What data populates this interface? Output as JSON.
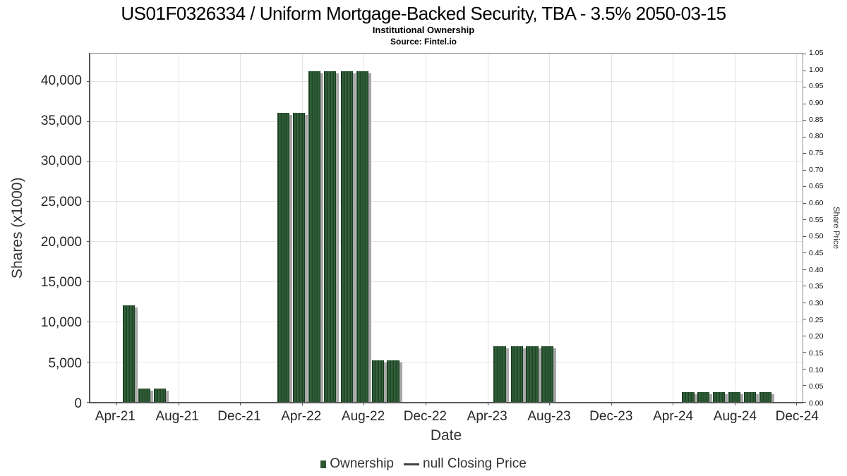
{
  "header": {
    "title": "US01F0326334 / Uniform Mortgage-Backed Security, TBA - 3.5% 2050-03-15",
    "subtitle": "Institutional Ownership",
    "source": "Source: Fintel.io"
  },
  "chart_data": {
    "type": "bar",
    "title": "US01F0326334 / Uniform Mortgage-Backed Security, TBA - 3.5% 2050-03-15",
    "subtitle": "Institutional Ownership",
    "source": "Source: Fintel.io",
    "xlabel": "Date",
    "grid": "both",
    "legend_position": "bottom-center",
    "x_axis": {
      "unit": "months since Apr-2021",
      "xlim": [
        -1.7,
        44.4
      ],
      "ticks": [
        {
          "label": "Apr-21",
          "month": 0
        },
        {
          "label": "Aug-21",
          "month": 4
        },
        {
          "label": "Dec-21",
          "month": 8
        },
        {
          "label": "Apr-22",
          "month": 12
        },
        {
          "label": "Aug-22",
          "month": 16
        },
        {
          "label": "Dec-22",
          "month": 20
        },
        {
          "label": "Apr-23",
          "month": 24
        },
        {
          "label": "Aug-23",
          "month": 28
        },
        {
          "label": "Dec-23",
          "month": 32
        },
        {
          "label": "Apr-24",
          "month": 36
        },
        {
          "label": "Aug-24",
          "month": 40
        },
        {
          "label": "Dec-24",
          "month": 44
        }
      ]
    },
    "y_axis_left": {
      "label": "Shares (x1000)",
      "ylim": [
        0,
        43400
      ],
      "ticks": [
        {
          "label": "0",
          "value": 0
        },
        {
          "label": "5,000",
          "value": 5000
        },
        {
          "label": "10,000",
          "value": 10000
        },
        {
          "label": "15,000",
          "value": 15000
        },
        {
          "label": "20,000",
          "value": 20000
        },
        {
          "label": "25,000",
          "value": 25000
        },
        {
          "label": "30,000",
          "value": 30000
        },
        {
          "label": "35,000",
          "value": 35000
        },
        {
          "label": "40,000",
          "value": 40000
        }
      ]
    },
    "y_axis_right": {
      "label": "Share Price",
      "ylim": [
        0,
        1.05
      ],
      "ticks": [
        {
          "label": "0.00",
          "value": 0.0
        },
        {
          "label": "0.05",
          "value": 0.05
        },
        {
          "label": "0.10",
          "value": 0.1
        },
        {
          "label": "0.15",
          "value": 0.15
        },
        {
          "label": "0.20",
          "value": 0.2
        },
        {
          "label": "0.25",
          "value": 0.25
        },
        {
          "label": "0.30",
          "value": 0.3
        },
        {
          "label": "0.35",
          "value": 0.35
        },
        {
          "label": "0.40",
          "value": 0.4
        },
        {
          "label": "0.45",
          "value": 0.45
        },
        {
          "label": "0.50",
          "value": 0.5
        },
        {
          "label": "0.55",
          "value": 0.55
        },
        {
          "label": "0.60",
          "value": 0.6
        },
        {
          "label": "0.65",
          "value": 0.65
        },
        {
          "label": "0.70",
          "value": 0.7
        },
        {
          "label": "0.75",
          "value": 0.75
        },
        {
          "label": "0.80",
          "value": 0.8
        },
        {
          "label": "0.85",
          "value": 0.85
        },
        {
          "label": "0.90",
          "value": 0.9
        },
        {
          "label": "0.95",
          "value": 0.95
        },
        {
          "label": "1.00",
          "value": 1.0
        },
        {
          "label": "1.05",
          "value": 1.05
        }
      ]
    },
    "bar_width_months": 0.78,
    "series": [
      {
        "name": "Ownership",
        "type": "bar",
        "color": "#2c5732",
        "points": [
          {
            "date": "May-21",
            "month": 0.8,
            "shares_x1000": 12000
          },
          {
            "date": "Jun-21",
            "month": 1.8,
            "shares_x1000": 1650
          },
          {
            "date": "Jul-21",
            "month": 2.8,
            "shares_x1000": 1650
          },
          {
            "date": "Feb-22",
            "month": 10.8,
            "shares_x1000": 36000
          },
          {
            "date": "Mar-22",
            "month": 11.8,
            "shares_x1000": 36000
          },
          {
            "date": "Apr-22",
            "month": 12.8,
            "shares_x1000": 41200
          },
          {
            "date": "May-22",
            "month": 13.8,
            "shares_x1000": 41200
          },
          {
            "date": "Jun-22",
            "month": 14.9,
            "shares_x1000": 41200
          },
          {
            "date": "Jul-22",
            "month": 15.9,
            "shares_x1000": 41200
          },
          {
            "date": "Aug-22",
            "month": 16.9,
            "shares_x1000": 5200
          },
          {
            "date": "Sep-22",
            "month": 17.9,
            "shares_x1000": 5200
          },
          {
            "date": "May-23",
            "month": 24.8,
            "shares_x1000": 6900
          },
          {
            "date": "Jun-23",
            "month": 25.9,
            "shares_x1000": 6900
          },
          {
            "date": "Jul-23",
            "month": 26.9,
            "shares_x1000": 6900
          },
          {
            "date": "Aug-23",
            "month": 27.9,
            "shares_x1000": 6900
          },
          {
            "date": "May-24",
            "month": 37.0,
            "shares_x1000": 1200
          },
          {
            "date": "Jun-24",
            "month": 38.0,
            "shares_x1000": 1200
          },
          {
            "date": "Jul-24",
            "month": 39.0,
            "shares_x1000": 1200
          },
          {
            "date": "Aug-24",
            "month": 40.0,
            "shares_x1000": 1200
          },
          {
            "date": "Sep-24",
            "month": 41.0,
            "shares_x1000": 1200
          },
          {
            "date": "Oct-24",
            "month": 42.0,
            "shares_x1000": 1200
          }
        ]
      },
      {
        "name": "null Closing Price",
        "type": "line",
        "color": "#444444",
        "points": []
      }
    ],
    "legend": [
      {
        "label": "Ownership",
        "marker": "square",
        "color": "#2c5732"
      },
      {
        "label": "null Closing Price",
        "marker": "line",
        "color": "#444444"
      }
    ]
  },
  "colors": {
    "bar_fill": "#2c5732",
    "bar_shadow": "#a8a8a8",
    "gridline": "#e3e3e3",
    "axis_border": "#5a5a5a",
    "tick_text": "#262626"
  }
}
